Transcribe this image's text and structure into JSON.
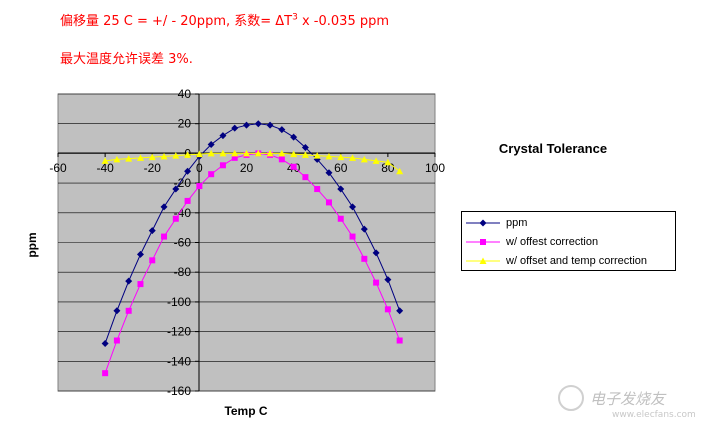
{
  "notes": {
    "line1_main": "偏移量 25 C = +/ - 20ppm, 系数= ΔT",
    "line1_sup": "3",
    "line1_tail": " x  -0.035 ppm",
    "line2": "最大温度允许误差 3%."
  },
  "colors": {
    "ppm": "#000080",
    "offset": "#ff00ff",
    "offset_temp": "#ffff00",
    "plot_bg": "#c0c0c0",
    "note_text": "#ff0000"
  },
  "watermark": {
    "brand": "电子发烧友",
    "url": "www.elecfans.com"
  },
  "chart_data": {
    "type": "line",
    "title": "Crystal Tolerance",
    "xlabel": "Temp C",
    "ylabel": "ppm",
    "xlim": [
      -60,
      100
    ],
    "ylim": [
      -160,
      40
    ],
    "xticks": [
      -60,
      -40,
      -20,
      0,
      20,
      40,
      60,
      80,
      100
    ],
    "yticks": [
      40,
      20,
      0,
      -20,
      -40,
      -60,
      -80,
      -100,
      -120,
      -140,
      -160
    ],
    "grid": "horizontal",
    "legend_position": "right",
    "x": [
      -40,
      -35,
      -30,
      -25,
      -20,
      -15,
      -10,
      -5,
      0,
      5,
      10,
      15,
      20,
      25,
      30,
      35,
      40,
      45,
      50,
      55,
      60,
      65,
      70,
      75,
      80,
      85
    ],
    "series": [
      {
        "name": "ppm",
        "marker": "diamond",
        "values": [
          -128,
          -106,
          -86,
          -68,
          -52,
          -36,
          -24,
          -12,
          -2,
          6,
          12,
          17,
          19,
          20,
          19,
          16,
          11,
          4,
          -4,
          -13,
          -24,
          -36,
          -51,
          -67,
          -85,
          -106
        ]
      },
      {
        "name": "w/ offest correction",
        "marker": "square",
        "values": [
          -148,
          -126,
          -106,
          -88,
          -72,
          -56,
          -44,
          -32,
          -22,
          -14,
          -8,
          -3,
          -1,
          0,
          -1,
          -4,
          -9,
          -16,
          -24,
          -33,
          -44,
          -56,
          -71,
          -87,
          -105,
          -126
        ]
      },
      {
        "name": "w/ offset and temp correction",
        "marker": "triangle",
        "values": [
          -5,
          -4,
          -3.5,
          -3,
          -2.5,
          -2,
          -1.5,
          -1,
          -0.5,
          0,
          0,
          0,
          0,
          0,
          0,
          0,
          -0.5,
          -1,
          -1.5,
          -2,
          -2.5,
          -3,
          -4,
          -5,
          -6,
          -12
        ]
      }
    ]
  }
}
